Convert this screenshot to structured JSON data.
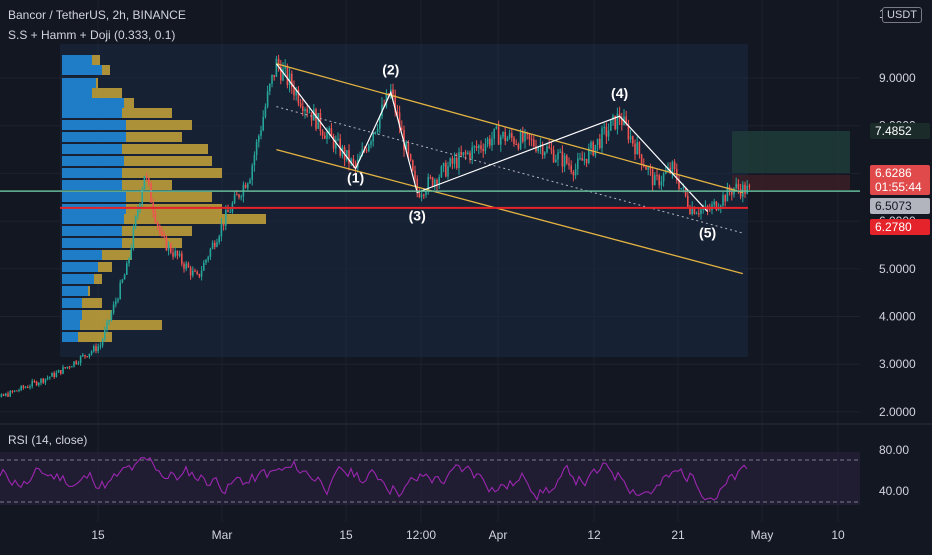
{
  "header": {
    "symbol_line": "Bancor / TetherUS, 2h, BINANCE",
    "indicator_line": "S.S + Hamm + Doji (0.333, 0.1)",
    "currency": "USDT",
    "axis_top_digit": "1"
  },
  "rsi": {
    "legend": "RSI (14, close)",
    "ticks": [
      "80.00",
      "40.00"
    ],
    "color": "#9c27b0"
  },
  "colors": {
    "background": "#131722",
    "grid": "#1e2230",
    "up": "#26a69a",
    "down": "#ef5350",
    "channel": "#e3b341",
    "support": "#e5232a",
    "current_price": "#66bb9a",
    "wave_lines": "#ffffff",
    "volume_profile_blue": "#1f87d6",
    "volume_profile_gold": "#c8a53a"
  },
  "chart_data": {
    "type": "candlestick",
    "title": "Bancor / TetherUS, 2h, BINANCE",
    "y_axis": {
      "ticks": [
        "9.0000",
        "8.0000",
        "7.0000",
        "6.0000",
        "5.0000",
        "4.0000",
        "3.0000",
        "2.0000"
      ],
      "range": [
        1.6,
        9.8
      ]
    },
    "x_axis": {
      "ticks": [
        "15",
        "Mar",
        "15",
        "12:00",
        "Apr",
        "12",
        "21",
        "May",
        "10"
      ]
    },
    "price_labels": [
      {
        "value": "7.4852",
        "type": "target"
      },
      {
        "value": "6.6286",
        "type": "current"
      },
      {
        "value": "01:55:44",
        "type": "countdown"
      },
      {
        "value": "6.5073",
        "type": "stop"
      },
      {
        "value": "6.2780",
        "type": "support"
      }
    ],
    "support_level": 6.278,
    "current_price": 6.6286,
    "elliott_waves": [
      {
        "label": "(1)",
        "date": "Mar 16",
        "price": 7.1
      },
      {
        "label": "(2)",
        "date": "Mar 20",
        "price": 8.7
      },
      {
        "label": "(3)",
        "date": "Mar 23",
        "price": 6.6
      },
      {
        "label": "(4)",
        "date": "Apr 15",
        "price": 8.2
      },
      {
        "label": "(5)",
        "date": "Apr 25",
        "price": 6.2
      }
    ],
    "channel": {
      "upper": [
        {
          "date": "Mar 7",
          "price": 9.3
        },
        {
          "date": "Apr 29",
          "price": 6.6
        }
      ],
      "lower": [
        {
          "date": "Mar 7",
          "price": 7.5
        },
        {
          "date": "Apr 29",
          "price": 4.9
        }
      ]
    },
    "price_path": [
      {
        "date": "Feb 1",
        "price": 2.1
      },
      {
        "date": "Feb 10",
        "price": 2.8
      },
      {
        "date": "Feb 15",
        "price": 3.4
      },
      {
        "date": "Feb 18",
        "price": 5.0
      },
      {
        "date": "Feb 20",
        "price": 7.0
      },
      {
        "date": "Feb 22",
        "price": 5.6
      },
      {
        "date": "Feb 26",
        "price": 4.8
      },
      {
        "date": "Mar 1",
        "price": 6.0
      },
      {
        "date": "Mar 4",
        "price": 7.0
      },
      {
        "date": "Mar 6",
        "price": 8.6
      },
      {
        "date": "Mar 7",
        "price": 9.3
      },
      {
        "date": "Mar 12",
        "price": 8.0
      },
      {
        "date": "Mar 16",
        "price": 7.1
      },
      {
        "date": "Mar 20",
        "price": 8.7
      },
      {
        "date": "Mar 23",
        "price": 6.6
      },
      {
        "date": "Mar 27",
        "price": 7.2
      },
      {
        "date": "Apr 1",
        "price": 7.8
      },
      {
        "date": "Apr 6",
        "price": 7.6
      },
      {
        "date": "Apr 10",
        "price": 7.1
      },
      {
        "date": "Apr 15",
        "price": 8.2
      },
      {
        "date": "Apr 19",
        "price": 6.8
      },
      {
        "date": "Apr 21",
        "price": 7.1
      },
      {
        "date": "Apr 23",
        "price": 6.3
      },
      {
        "date": "Apr 25",
        "price": 6.2
      },
      {
        "date": "Apr 28",
        "price": 6.7
      },
      {
        "date": "Apr 30",
        "price": 6.63
      }
    ]
  }
}
